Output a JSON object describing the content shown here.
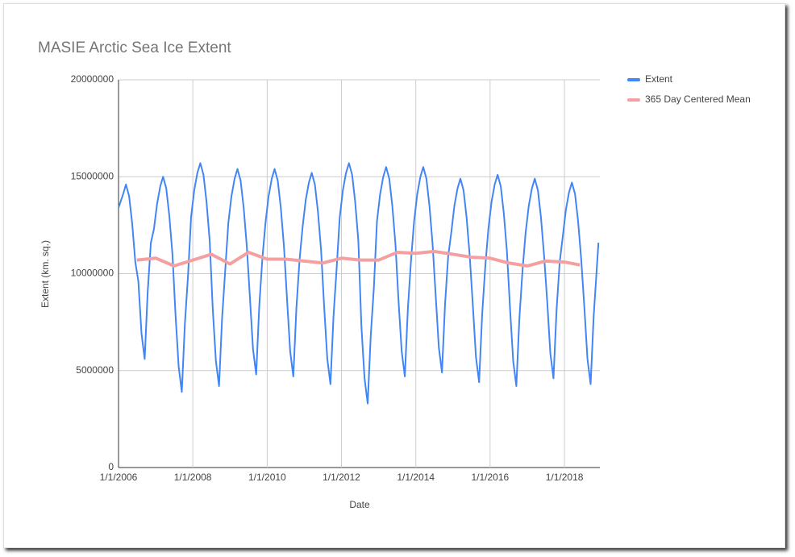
{
  "chart_data": {
    "type": "line",
    "title": "MASIE Arctic Sea Ice Extent",
    "x_label": "Date",
    "y_label": "Extent (km. sq.)",
    "legend": "right",
    "grid": true,
    "xlim": [
      "1/1/2006",
      "12/15/2018"
    ],
    "xticks": [
      "1/1/2006",
      "1/1/2008",
      "1/1/2010",
      "1/1/2012",
      "1/1/2014",
      "1/1/2016",
      "1/1/2018"
    ],
    "ylim": [
      0,
      20000000
    ],
    "yticks": [
      0,
      5000000,
      10000000,
      15000000,
      20000000
    ],
    "series": [
      {
        "name": "Extent",
        "color": "#4285f4",
        "x": [
          "1/1/2006",
          "2/15/2006",
          "3/15/2006",
          "4/15/2006",
          "5/15/2006",
          "6/15/2006",
          "7/15/2006",
          "8/15/2006",
          "9/15/2006",
          "10/15/2006",
          "11/15/2006",
          "12/15/2006",
          "1/15/2007",
          "2/15/2007",
          "3/15/2007",
          "4/15/2007",
          "5/15/2007",
          "6/15/2007",
          "7/15/2007",
          "8/15/2007",
          "9/15/2007",
          "10/15/2007",
          "11/15/2007",
          "12/15/2007",
          "1/15/2008",
          "2/15/2008",
          "3/15/2008",
          "4/15/2008",
          "5/15/2008",
          "6/15/2008",
          "7/15/2008",
          "8/15/2008",
          "9/15/2008",
          "10/15/2008",
          "11/15/2008",
          "12/15/2008",
          "1/15/2009",
          "2/15/2009",
          "3/15/2009",
          "4/15/2009",
          "5/15/2009",
          "6/15/2009",
          "7/15/2009",
          "8/15/2009",
          "9/15/2009",
          "10/15/2009",
          "11/15/2009",
          "12/15/2009",
          "1/15/2010",
          "2/15/2010",
          "3/15/2010",
          "4/15/2010",
          "5/15/2010",
          "6/15/2010",
          "7/15/2010",
          "8/15/2010",
          "9/15/2010",
          "10/15/2010",
          "11/15/2010",
          "12/15/2010",
          "1/15/2011",
          "2/15/2011",
          "3/15/2011",
          "4/15/2011",
          "5/15/2011",
          "6/15/2011",
          "7/15/2011",
          "8/15/2011",
          "9/15/2011",
          "10/15/2011",
          "11/15/2011",
          "12/15/2011",
          "1/15/2012",
          "2/15/2012",
          "3/15/2012",
          "4/15/2012",
          "5/15/2012",
          "6/15/2012",
          "7/15/2012",
          "8/15/2012",
          "9/15/2012",
          "10/15/2012",
          "11/15/2012",
          "12/15/2012",
          "1/15/2013",
          "2/15/2013",
          "3/15/2013",
          "4/15/2013",
          "5/15/2013",
          "6/15/2013",
          "7/15/2013",
          "8/15/2013",
          "9/15/2013",
          "10/15/2013",
          "11/15/2013",
          "12/15/2013",
          "1/15/2014",
          "2/15/2014",
          "3/15/2014",
          "4/15/2014",
          "5/15/2014",
          "6/15/2014",
          "7/15/2014",
          "8/15/2014",
          "9/15/2014",
          "10/15/2014",
          "11/15/2014",
          "12/15/2014",
          "1/15/2015",
          "2/15/2015",
          "3/15/2015",
          "4/15/2015",
          "5/15/2015",
          "6/15/2015",
          "7/15/2015",
          "8/15/2015",
          "9/15/2015",
          "10/15/2015",
          "11/15/2015",
          "12/15/2015",
          "1/15/2016",
          "2/15/2016",
          "3/15/2016",
          "4/15/2016",
          "5/15/2016",
          "6/15/2016",
          "7/15/2016",
          "8/15/2016",
          "9/15/2016",
          "10/15/2016",
          "11/15/2016",
          "12/15/2016",
          "1/15/2017",
          "2/15/2017",
          "3/15/2017",
          "4/15/2017",
          "5/15/2017",
          "6/15/2017",
          "7/15/2017",
          "8/15/2017",
          "9/15/2017",
          "10/15/2017",
          "11/15/2017",
          "12/15/2017",
          "1/15/2018",
          "2/15/2018",
          "3/15/2018",
          "4/15/2018",
          "5/15/2018",
          "6/15/2018",
          "7/15/2018",
          "8/15/2018",
          "9/15/2018",
          "10/15/2018",
          "11/15/2018",
          "12/1/2018"
        ],
        "values": [
          13400000,
          14100000,
          14600000,
          14000000,
          12600000,
          10600000,
          9600000,
          6900000,
          5600000,
          9100000,
          11600000,
          12300000,
          13600000,
          14500000,
          15000000,
          14400000,
          13000000,
          11000000,
          7900000,
          5200000,
          3900000,
          7400000,
          9900000,
          12900000,
          14300000,
          15200000,
          15700000,
          15100000,
          13700000,
          11700000,
          8200000,
          5500000,
          4200000,
          7700000,
          10200000,
          12600000,
          14000000,
          14900000,
          15400000,
          14800000,
          13400000,
          11400000,
          8800000,
          6100000,
          4800000,
          8300000,
          10800000,
          12600000,
          14000000,
          14900000,
          15400000,
          14800000,
          13400000,
          11400000,
          8700000,
          6000000,
          4700000,
          8200000,
          10700000,
          12400000,
          13800000,
          14700000,
          15200000,
          14600000,
          13200000,
          11200000,
          8300000,
          5600000,
          4300000,
          7800000,
          10300000,
          12900000,
          14300000,
          15200000,
          15700000,
          15100000,
          13700000,
          11700000,
          7300000,
          4600000,
          3300000,
          6800000,
          9300000,
          12700000,
          14100000,
          15000000,
          15500000,
          14900000,
          13500000,
          11500000,
          8600000,
          6000000,
          4700000,
          8200000,
          10700000,
          12700000,
          14100000,
          15000000,
          15500000,
          14900000,
          13500000,
          11500000,
          8900000,
          6200000,
          4900000,
          8400000,
          10900000,
          12100000,
          13500000,
          14400000,
          14900000,
          14300000,
          12900000,
          10900000,
          8400000,
          5700000,
          4400000,
          7900000,
          10400000,
          12300000,
          13700000,
          14600000,
          15100000,
          14500000,
          13100000,
          11100000,
          8200000,
          5500000,
          4200000,
          7700000,
          10200000,
          12100000,
          13500000,
          14400000,
          14900000,
          14300000,
          12900000,
          10900000,
          8600000,
          5900000,
          4600000,
          8100000,
          10600000,
          11900000,
          13300000,
          14200000,
          14700000,
          14100000,
          12700000,
          10700000,
          8300000,
          5600000,
          4300000,
          7800000,
          10300000,
          11600000
        ]
      },
      {
        "name": "365 Day Centered Mean",
        "color": "#f4a0a0",
        "x": [
          "7/1/2006",
          "1/1/2007",
          "7/1/2007",
          "1/1/2008",
          "7/1/2008",
          "1/1/2009",
          "7/1/2009",
          "1/1/2010",
          "7/1/2010",
          "1/1/2011",
          "7/1/2011",
          "1/1/2012",
          "7/1/2012",
          "1/1/2013",
          "7/1/2013",
          "1/1/2014",
          "7/1/2014",
          "1/1/2015",
          "7/1/2015",
          "1/1/2016",
          "7/1/2016",
          "1/1/2017",
          "7/1/2017",
          "1/1/2018",
          "6/1/2018"
        ],
        "values": [
          10700000,
          10800000,
          10400000,
          10700000,
          11000000,
          10500000,
          11100000,
          10750000,
          10750000,
          10650000,
          10550000,
          10800000,
          10700000,
          10700000,
          11100000,
          11050000,
          11150000,
          11000000,
          10850000,
          10800000,
          10550000,
          10400000,
          10650000,
          10600000,
          10450000
        ]
      }
    ]
  }
}
